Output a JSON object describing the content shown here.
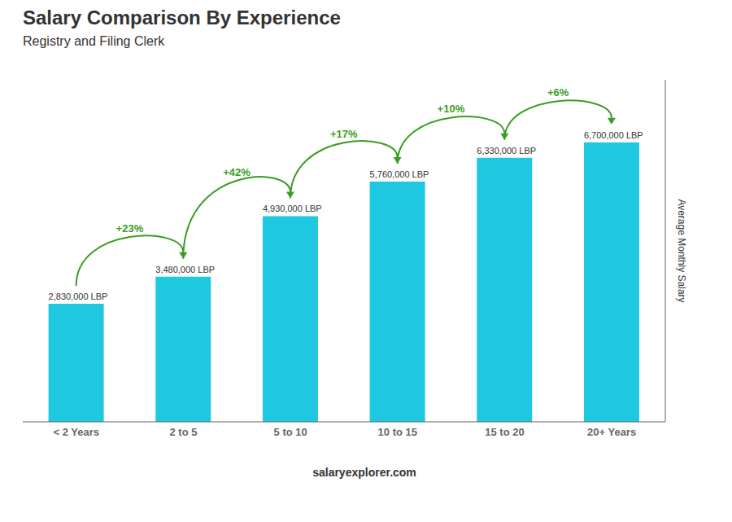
{
  "chart_data": {
    "type": "bar",
    "title": "Salary Comparison By Experience",
    "subtitle": "Registry and Filing Clerk",
    "categories": [
      "< 2 Years",
      "2 to 5",
      "5 to 10",
      "10 to 15",
      "15 to 20",
      "20+ Years"
    ],
    "values": [
      2830000,
      3480000,
      4930000,
      5760000,
      6330000,
      6700000
    ],
    "value_labels": [
      "2,830,000 LBP",
      "3,480,000 LBP",
      "4,930,000 LBP",
      "5,760,000 LBP",
      "6,330,000 LBP",
      "6,700,000 LBP"
    ],
    "data_labels": true,
    "color": "#1ec8e0",
    "ylabel": "Average Monthly Salary",
    "ylim": [
      0,
      8200000
    ],
    "tick_labels": "x",
    "grid": false,
    "annotations": [
      {
        "from": "< 2 Years",
        "to": "2 to 5",
        "text": "+23%"
      },
      {
        "from": "2 to 5",
        "to": "5 to 10",
        "text": "+42%"
      },
      {
        "from": "5 to 10",
        "to": "10 to 15",
        "text": "+17%"
      },
      {
        "from": "10 to 15",
        "to": "15 to 20",
        "text": "+10%"
      },
      {
        "from": "15 to 20",
        "to": "20+ Years",
        "text": "+6%"
      }
    ],
    "footer": [
      "salary",
      "explorer.com"
    ]
  }
}
